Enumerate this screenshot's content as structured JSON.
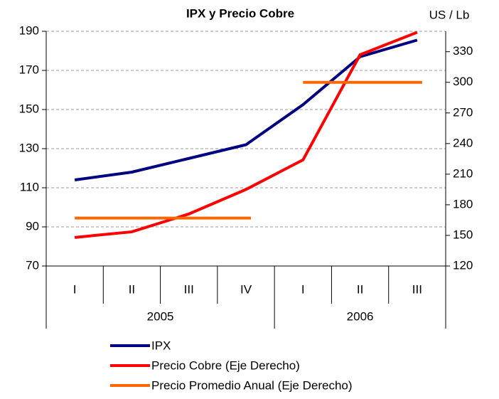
{
  "chart_data": {
    "type": "line",
    "title": "IPX y Precio Cobre",
    "y2label": "US / Lb",
    "groups": [
      {
        "label": "2005",
        "categories": [
          "I",
          "II",
          "III",
          "IV"
        ]
      },
      {
        "label": "2006",
        "categories": [
          "I",
          "II",
          "III"
        ]
      }
    ],
    "ylim": [
      70,
      190
    ],
    "yticks": [
      70,
      90,
      110,
      130,
      150,
      170,
      190
    ],
    "y2lim": [
      120,
      350
    ],
    "y2ticks": [
      120,
      150,
      180,
      210,
      240,
      270,
      300,
      330
    ],
    "grid": true,
    "series": [
      {
        "name": "IPX",
        "color": "#000080",
        "values": [
          114,
          118,
          125,
          132,
          152.5,
          177,
          185.5
        ]
      },
      {
        "name": "Precio Cobre (Eje Derecho)",
        "color": "#ff0000",
        "axis": "y2",
        "values": [
          148,
          153.5,
          171,
          195,
          224,
          327,
          349
        ]
      },
      {
        "name": "Precio Promedio Anual  (Eje Derecho)",
        "color": "#ff6600",
        "axis": "y2",
        "style": "level",
        "values": [
          167,
          167,
          167,
          167,
          300,
          300,
          300
        ]
      }
    ]
  }
}
